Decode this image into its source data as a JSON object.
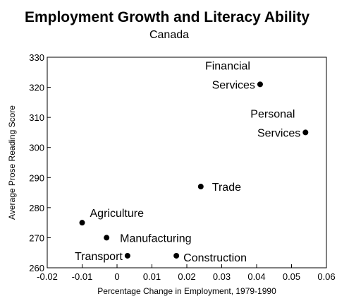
{
  "chart_data": {
    "type": "scatter",
    "title": "Employment Growth and Literacy Ability",
    "subtitle": "Canada",
    "xlabel": "Percentage Change in Employment, 1979-1990",
    "ylabel": "Average Prose Reading Score",
    "xlim": [
      -0.02,
      0.06
    ],
    "ylim": [
      260,
      330
    ],
    "xticks": [
      "-0.02",
      "-0.01",
      "0",
      "0.01",
      "0.02",
      "0.03",
      "0.04",
      "0.05",
      "0.06"
    ],
    "yticks": [
      "260",
      "270",
      "280",
      "290",
      "300",
      "310",
      "320",
      "330"
    ],
    "grid": false,
    "points": [
      {
        "label": "Financial Services",
        "label_lines": [
          "Financial",
          "Services"
        ],
        "x": 0.041,
        "y": 321
      },
      {
        "label": "Personal Services",
        "label_lines": [
          "Personal",
          "Services"
        ],
        "x": 0.054,
        "y": 305
      },
      {
        "label": "Trade",
        "label_lines": [
          "Trade"
        ],
        "x": 0.024,
        "y": 287
      },
      {
        "label": "Agriculture",
        "label_lines": [
          "Agriculture"
        ],
        "x": -0.01,
        "y": 275
      },
      {
        "label": "Manufacturing",
        "label_lines": [
          "Manufacturing"
        ],
        "x": -0.003,
        "y": 270
      },
      {
        "label": "Transport",
        "label_lines": [
          "Transport"
        ],
        "x": 0.003,
        "y": 264
      },
      {
        "label": "Construction",
        "label_lines": [
          "Construction"
        ],
        "x": 0.017,
        "y": 264
      }
    ],
    "colors": {
      "point": "#000000",
      "axis": "#000000"
    }
  }
}
